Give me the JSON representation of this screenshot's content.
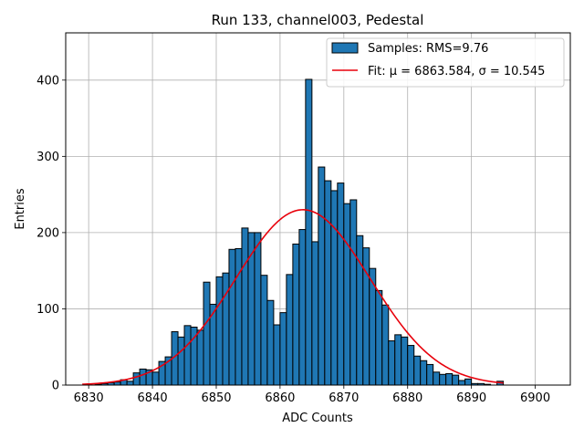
{
  "chart_data": {
    "type": "bar",
    "title": "Run 133, channel003, Pedestal",
    "xlabel": "ADC Counts",
    "ylabel": "Entries",
    "xlim": [
      6826.4,
      6905.5
    ],
    "ylim": [
      0,
      462
    ],
    "x_ticks": [
      6830,
      6840,
      6850,
      6860,
      6870,
      6880,
      6890,
      6900
    ],
    "y_ticks": [
      0,
      100,
      200,
      300,
      400
    ],
    "grid": true,
    "legend_position": "top-right",
    "bar_color": "#1f77b4",
    "fit_color": "#e8000b",
    "legend": {
      "samples": "Samples: RMS=9.76",
      "fit": "Fit: μ = 6863.584, σ = 10.545"
    },
    "histogram": {
      "bin_width": 1,
      "bin_starts": [
        6829,
        6830,
        6831,
        6832,
        6833,
        6834,
        6835,
        6836,
        6837,
        6838,
        6839,
        6840,
        6841,
        6842,
        6843,
        6844,
        6845,
        6846,
        6847,
        6848,
        6849,
        6850,
        6851,
        6852,
        6853,
        6854,
        6855,
        6856,
        6857,
        6858,
        6859,
        6860,
        6861,
        6862,
        6863,
        6864,
        6865,
        6866,
        6867,
        6868,
        6869,
        6870,
        6871,
        6872,
        6873,
        6874,
        6875,
        6876,
        6877,
        6878,
        6879,
        6880,
        6881,
        6882,
        6883,
        6884,
        6885,
        6886,
        6887,
        6888,
        6889,
        6890,
        6891,
        6892,
        6893,
        6894
      ],
      "counts": [
        0,
        0,
        1,
        2,
        3,
        4,
        7,
        5,
        16,
        21,
        20,
        17,
        31,
        37,
        70,
        63,
        78,
        76,
        72,
        135,
        106,
        142,
        147,
        178,
        179,
        206,
        200,
        200,
        144,
        111,
        79,
        95,
        145,
        185,
        204,
        401,
        188,
        286,
        268,
        255,
        265,
        238,
        243,
        196,
        180,
        153,
        124,
        105,
        58,
        66,
        63,
        52,
        38,
        32,
        27,
        17,
        14,
        15,
        13,
        6,
        8,
        2,
        2,
        1,
        0,
        5
      ]
    },
    "fit": {
      "mu": 6863.584,
      "sigma": 10.545,
      "amplitude": 230,
      "x_range": [
        6829,
        6895
      ]
    }
  }
}
